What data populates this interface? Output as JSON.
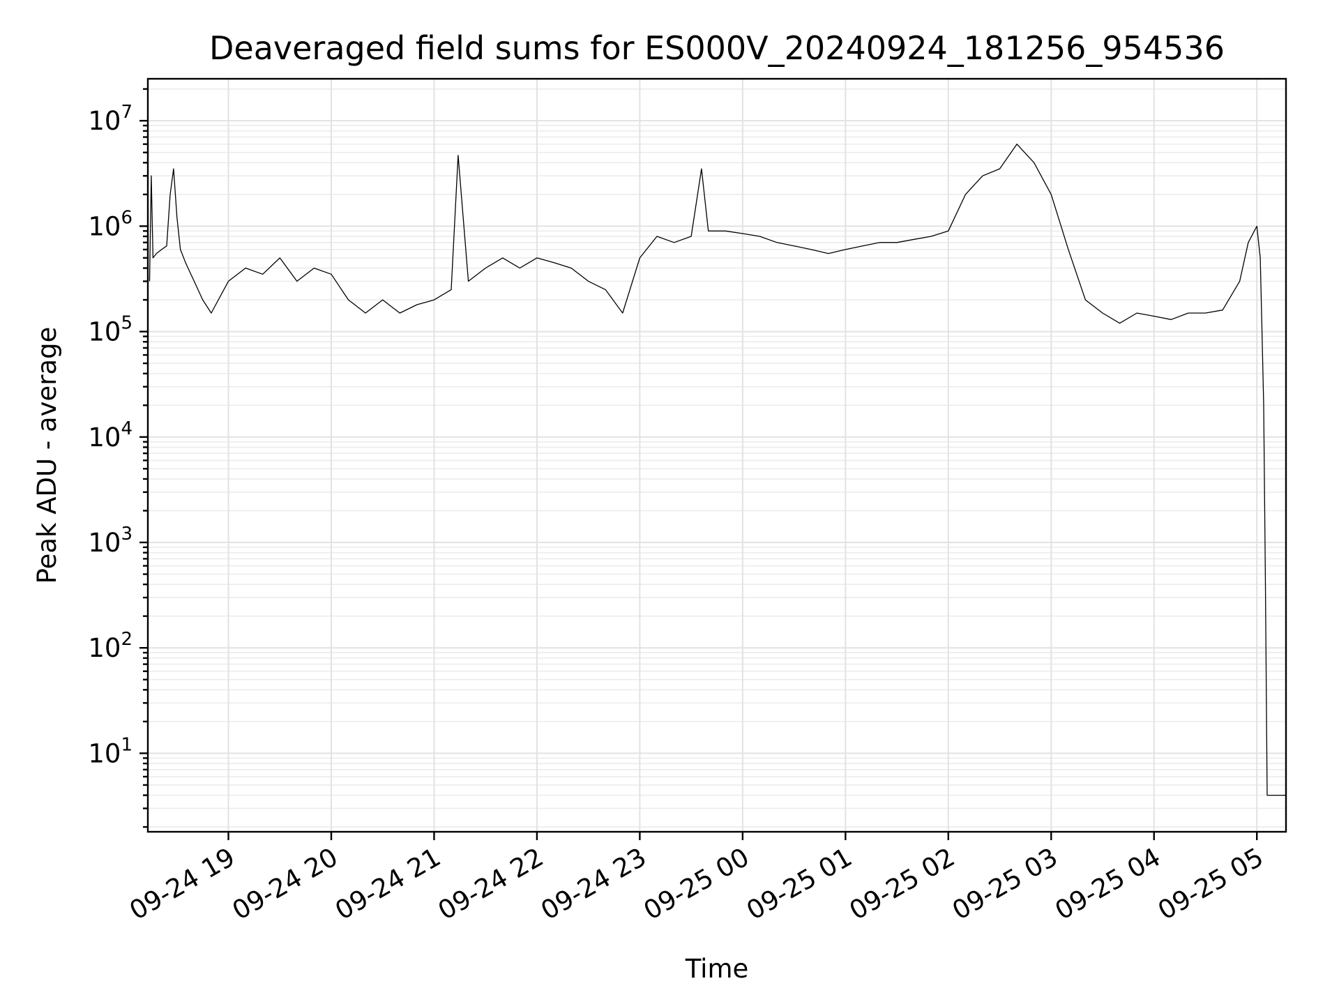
{
  "chart_data": {
    "type": "line",
    "title": "Deaveraged field sums for ES000V_20240924_181256_954536",
    "xlabel": "Time",
    "ylabel": "Peak ADU - average",
    "yscale": "log",
    "grid": true,
    "line_color": "#000000",
    "grid_color": "#e2e2e2",
    "xlim": [
      "2024-09-24 18:13",
      "2024-09-25 05:17"
    ],
    "ylim": [
      1.8,
      25000000
    ],
    "x_ticks": [
      {
        "value": "2024-09-24 19:00",
        "label": "09-24 19"
      },
      {
        "value": "2024-09-24 20:00",
        "label": "09-24 20"
      },
      {
        "value": "2024-09-24 21:00",
        "label": "09-24 21"
      },
      {
        "value": "2024-09-24 22:00",
        "label": "09-24 22"
      },
      {
        "value": "2024-09-24 23:00",
        "label": "09-24 23"
      },
      {
        "value": "2024-09-25 00:00",
        "label": "09-25 00"
      },
      {
        "value": "2024-09-25 01:00",
        "label": "09-25 01"
      },
      {
        "value": "2024-09-25 02:00",
        "label": "09-25 02"
      },
      {
        "value": "2024-09-25 03:00",
        "label": "09-25 03"
      },
      {
        "value": "2024-09-25 04:00",
        "label": "09-25 04"
      },
      {
        "value": "2024-09-25 05:00",
        "label": "09-25 05"
      }
    ],
    "y_ticks": [
      {
        "value": 10,
        "base": "10",
        "exp": "1"
      },
      {
        "value": 100,
        "base": "10",
        "exp": "2"
      },
      {
        "value": 1000,
        "base": "10",
        "exp": "3"
      },
      {
        "value": 10000,
        "base": "10",
        "exp": "4"
      },
      {
        "value": 100000,
        "base": "10",
        "exp": "5"
      },
      {
        "value": 1000000,
        "base": "10",
        "exp": "6"
      },
      {
        "value": 10000000,
        "base": "10",
        "exp": "7"
      }
    ],
    "series": [
      {
        "x": [
          "2024-09-24 18:14",
          "2024-09-24 18:15",
          "2024-09-24 18:16",
          "2024-09-24 18:18",
          "2024-09-24 18:21",
          "2024-09-24 18:24",
          "2024-09-24 18:26",
          "2024-09-24 18:28",
          "2024-09-24 18:30",
          "2024-09-24 18:32",
          "2024-09-24 18:35",
          "2024-09-24 18:40",
          "2024-09-24 18:45",
          "2024-09-24 18:50",
          "2024-09-24 19:00",
          "2024-09-24 19:10",
          "2024-09-24 19:20",
          "2024-09-24 19:30",
          "2024-09-24 19:40",
          "2024-09-24 19:50",
          "2024-09-24 20:00",
          "2024-09-24 20:10",
          "2024-09-24 20:20",
          "2024-09-24 20:30",
          "2024-09-24 20:40",
          "2024-09-24 20:50",
          "2024-09-24 21:00",
          "2024-09-24 21:10",
          "2024-09-24 21:14",
          "2024-09-24 21:20",
          "2024-09-24 21:30",
          "2024-09-24 21:40",
          "2024-09-24 21:50",
          "2024-09-24 22:00",
          "2024-09-24 22:10",
          "2024-09-24 22:20",
          "2024-09-24 22:30",
          "2024-09-24 22:40",
          "2024-09-24 22:50",
          "2024-09-24 23:00",
          "2024-09-24 23:10",
          "2024-09-24 23:20",
          "2024-09-24 23:30",
          "2024-09-24 23:36",
          "2024-09-24 23:40",
          "2024-09-24 23:50",
          "2024-09-25 00:00",
          "2024-09-25 00:10",
          "2024-09-25 00:20",
          "2024-09-25 00:30",
          "2024-09-25 00:40",
          "2024-09-25 00:50",
          "2024-09-25 01:00",
          "2024-09-25 01:10",
          "2024-09-25 01:20",
          "2024-09-25 01:30",
          "2024-09-25 01:40",
          "2024-09-25 01:50",
          "2024-09-25 02:00",
          "2024-09-25 02:10",
          "2024-09-25 02:20",
          "2024-09-25 02:30",
          "2024-09-25 02:40",
          "2024-09-25 02:50",
          "2024-09-25 03:00",
          "2024-09-25 03:10",
          "2024-09-25 03:20",
          "2024-09-25 03:30",
          "2024-09-25 03:40",
          "2024-09-25 03:50",
          "2024-09-25 04:00",
          "2024-09-25 04:10",
          "2024-09-25 04:20",
          "2024-09-25 04:30",
          "2024-09-25 04:40",
          "2024-09-25 04:50",
          "2024-09-25 04:55",
          "2024-09-25 05:00",
          "2024-09-25 05:02",
          "2024-09-25 05:03",
          "2024-09-25 05:04",
          "2024-09-25 05:05",
          "2024-09-25 05:06",
          "2024-09-25 05:10",
          "2024-09-25 05:17"
        ],
        "y": [
          300000,
          3000000,
          500000,
          550000,
          600000,
          650000,
          2000000,
          3500000,
          1200000,
          600000,
          450000,
          300000,
          200000,
          150000,
          300000,
          400000,
          350000,
          500000,
          300000,
          400000,
          350000,
          200000,
          150000,
          200000,
          150000,
          180000,
          200000,
          250000,
          4700000,
          300000,
          400000,
          500000,
          400000,
          500000,
          450000,
          400000,
          300000,
          250000,
          150000,
          500000,
          800000,
          700000,
          800000,
          3500000,
          900000,
          900000,
          850000,
          800000,
          700000,
          650000,
          600000,
          550000,
          600000,
          650000,
          700000,
          700000,
          750000,
          800000,
          900000,
          2000000,
          3000000,
          3500000,
          6000000,
          4000000,
          2000000,
          600000,
          200000,
          150000,
          120000,
          150000,
          140000,
          130000,
          150000,
          150000,
          160000,
          300000,
          700000,
          1000000,
          500000,
          100000,
          20000,
          400,
          4,
          4,
          4
        ]
      }
    ]
  }
}
